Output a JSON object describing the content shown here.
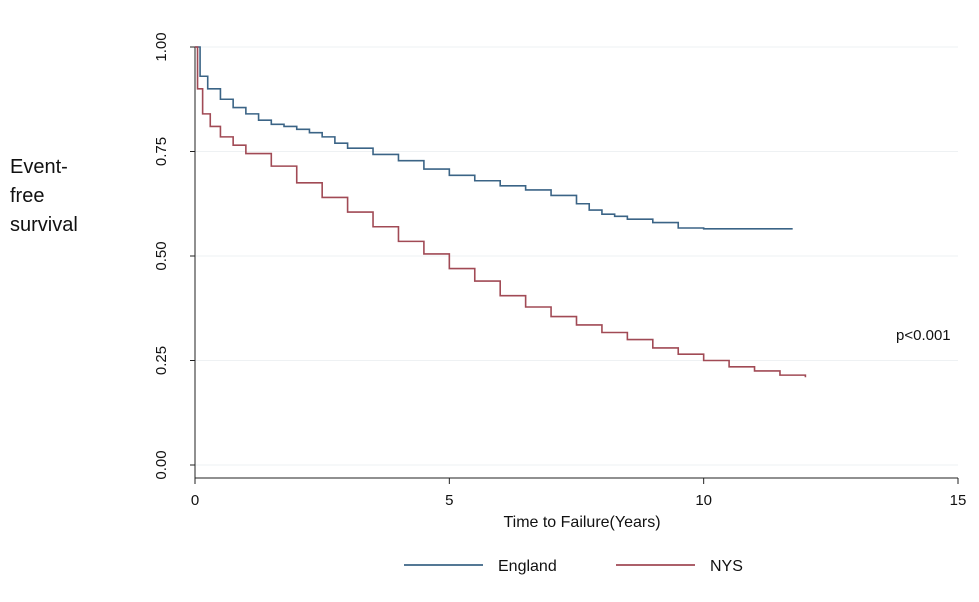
{
  "side_label": [
    "Event-",
    "free",
    "survival"
  ],
  "chart_data": {
    "type": "line",
    "xlabel": "Time to Failure(Years)",
    "ylabel": "",
    "xlim": [
      0,
      15
    ],
    "ylim": [
      0,
      1
    ],
    "x_ticks": [
      "0",
      "5",
      "10",
      "15"
    ],
    "y_ticks": [
      "0.00",
      "0.25",
      "0.50",
      "0.75",
      "1.00"
    ],
    "grid": true,
    "legend_position": "bottom",
    "annotation": "p<0.001",
    "series": [
      {
        "name": "England",
        "color": "#3b6486",
        "x": [
          0,
          0.1,
          0.25,
          0.5,
          0.75,
          1.0,
          1.25,
          1.5,
          1.75,
          2.0,
          2.25,
          2.5,
          2.75,
          3.0,
          3.5,
          4.0,
          4.5,
          5.0,
          5.5,
          6.0,
          6.5,
          7.0,
          7.5,
          7.75,
          8.0,
          8.25,
          8.5,
          9.0,
          9.5,
          10.0,
          10.5,
          11.0,
          11.75
        ],
        "y": [
          1.0,
          0.93,
          0.9,
          0.875,
          0.855,
          0.84,
          0.825,
          0.815,
          0.81,
          0.803,
          0.795,
          0.785,
          0.77,
          0.758,
          0.743,
          0.728,
          0.708,
          0.693,
          0.68,
          0.668,
          0.658,
          0.645,
          0.625,
          0.61,
          0.6,
          0.595,
          0.588,
          0.58,
          0.567,
          0.565,
          0.565,
          0.565,
          0.565
        ]
      },
      {
        "name": "NYS",
        "color": "#a14a55",
        "x": [
          0,
          0.05,
          0.15,
          0.3,
          0.5,
          0.75,
          1.0,
          1.5,
          2.0,
          2.5,
          3.0,
          3.5,
          4.0,
          4.5,
          5.0,
          5.5,
          6.0,
          6.5,
          7.0,
          7.5,
          8.0,
          8.5,
          9.0,
          9.5,
          10.0,
          10.5,
          11.0,
          11.5,
          12.0
        ],
        "y": [
          1.0,
          0.9,
          0.84,
          0.81,
          0.785,
          0.765,
          0.745,
          0.715,
          0.675,
          0.64,
          0.605,
          0.57,
          0.535,
          0.505,
          0.47,
          0.44,
          0.405,
          0.378,
          0.355,
          0.335,
          0.317,
          0.3,
          0.28,
          0.265,
          0.25,
          0.235,
          0.225,
          0.215,
          0.21
        ]
      }
    ]
  }
}
